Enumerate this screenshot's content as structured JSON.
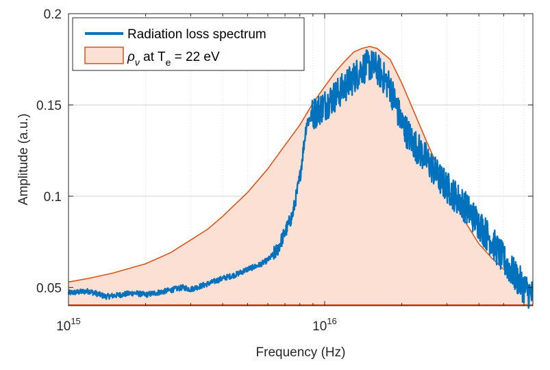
{
  "chart_data": {
    "type": "line",
    "title": "",
    "xlabel": "Frequency (Hz)",
    "ylabel": "Amplitude (a.u.)",
    "xscale": "log",
    "xlim": [
      1000000000000000.0,
      6.5e+16
    ],
    "ylim": [
      0.04,
      0.2
    ],
    "grid": true,
    "legend_position": "top-left",
    "x_ticks": [
      {
        "value": 1000000000000000.0,
        "base": "10",
        "exp": "15"
      },
      {
        "value": 1e+16,
        "base": "10",
        "exp": "16"
      }
    ],
    "y_ticks": [
      {
        "value": 0.05,
        "label": "0.05"
      },
      {
        "value": 0.1,
        "label": "0.1"
      },
      {
        "value": 0.15,
        "label": "0.15"
      },
      {
        "value": 0.2,
        "label": "0.2"
      }
    ],
    "series": [
      {
        "name": "Radiation loss spectrum",
        "style": "line",
        "color": "#0072BD",
        "x": [
          1000000000000000.0,
          1200000000000000.0,
          1400000000000000.0,
          1600000000000000.0,
          1800000000000000.0,
          2000000000000000.0,
          2400000000000000.0,
          2800000000000000.0,
          3000000000000000.0,
          3500000000000000.0,
          4000000000000000.0,
          4500000000000000.0,
          5000000000000000.0,
          5500000000000000.0,
          6000000000000000.0,
          6500000000000000.0,
          7000000000000000.0,
          7500000000000000.0,
          8000000000000000.0,
          8500000000000000.0,
          9000000000000000.0,
          1e+16,
          1.1e+16,
          1.2e+16,
          1.3e+16,
          1.4e+16,
          1.5e+16,
          1.6e+16,
          1.8e+16,
          2e+16,
          2.2e+16,
          2.5e+16,
          2.8e+16,
          3e+16,
          3.5e+16,
          4e+16,
          4.5e+16,
          5e+16,
          5.5e+16,
          6e+16,
          6.5e+16
        ],
        "y": [
          0.047,
          0.048,
          0.045,
          0.046,
          0.047,
          0.046,
          0.048,
          0.05,
          0.049,
          0.052,
          0.055,
          0.057,
          0.06,
          0.062,
          0.065,
          0.07,
          0.08,
          0.09,
          0.11,
          0.14,
          0.145,
          0.15,
          0.155,
          0.16,
          0.165,
          0.17,
          0.172,
          0.17,
          0.16,
          0.14,
          0.13,
          0.12,
          0.11,
          0.105,
          0.095,
          0.085,
          0.075,
          0.065,
          0.057,
          0.05,
          0.045
        ]
      },
      {
        "name": "ρ_ν at T_e = 22 eV",
        "legend_label": {
          "rho": "ρ",
          "nu": "ν",
          "at": " at T",
          "e": "e",
          "rest": " = 22 eV"
        },
        "style": "area",
        "color": "#D95319",
        "fill": "#FCE0D4",
        "x": [
          1000000000000000.0,
          1200000000000000.0,
          1500000000000000.0,
          2000000000000000.0,
          2500000000000000.0,
          3000000000000000.0,
          3500000000000000.0,
          4000000000000000.0,
          5000000000000000.0,
          6000000000000000.0,
          7000000000000000.0,
          8000000000000000.0,
          9000000000000000.0,
          1e+16,
          1.1e+16,
          1.2e+16,
          1.3e+16,
          1.4e+16,
          1.5e+16,
          1.6e+16,
          1.8e+16,
          2e+16,
          2.5e+16,
          3e+16,
          3.5e+16,
          4e+16,
          4.5e+16,
          5e+16,
          5.5e+16,
          6e+16,
          6.5e+16
        ],
        "y": [
          0.053,
          0.055,
          0.058,
          0.063,
          0.069,
          0.076,
          0.082,
          0.089,
          0.102,
          0.115,
          0.128,
          0.139,
          0.151,
          0.16,
          0.168,
          0.174,
          0.179,
          0.181,
          0.182,
          0.181,
          0.175,
          0.162,
          0.13,
          0.105,
          0.087,
          0.074,
          0.066,
          0.06,
          0.055,
          0.052,
          0.05
        ]
      }
    ]
  }
}
